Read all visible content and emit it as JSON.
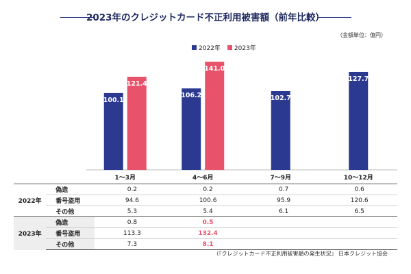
{
  "title": "2023年のクレジットカード不正利用被害額（前年比較）",
  "unit_note": "（金額単位：億円）",
  "source": "（『クレジットカード不正利用被害額の発生状況』 日本クレジット協会",
  "colors": {
    "s2022": "#2b3990",
    "s2023": "#e8536b",
    "title_line": "#2b3990"
  },
  "chart_data": {
    "type": "bar",
    "categories": [
      "1〜3月",
      "4〜6月",
      "7〜9月",
      "10〜12月"
    ],
    "series": [
      {
        "name": "2022年",
        "values": [
          100.1,
          106.2,
          102.7,
          127.7
        ]
      },
      {
        "name": "2023年",
        "values": [
          121.4,
          141.0,
          null,
          null
        ]
      }
    ],
    "value_labels": [
      [
        "100.1",
        "106.2",
        "102.7",
        "127.7"
      ],
      [
        "121.4",
        "141.0",
        "",
        ""
      ]
    ],
    "ylim": [
      0,
      150
    ],
    "legend": "top-center",
    "grid": false
  },
  "table": {
    "groups": [
      {
        "year": "2022年",
        "rows": [
          {
            "label": "偽造",
            "values": [
              "0.2",
              "0.2",
              "0.7",
              "0.6"
            ]
          },
          {
            "label": "番号盗用",
            "values": [
              "94.6",
              "100.6",
              "95.9",
              "120.6"
            ]
          },
          {
            "label": "その他",
            "values": [
              "5.3",
              "5.4",
              "6.1",
              "6.5"
            ]
          }
        ]
      },
      {
        "year": "2023年",
        "rows": [
          {
            "label": "偽造",
            "values": [
              "0.8",
              "0.5",
              "",
              ""
            ]
          },
          {
            "label": "番号盗用",
            "values": [
              "113.3",
              "132.4",
              "",
              ""
            ]
          },
          {
            "label": "その他",
            "values": [
              "7.3",
              "8.1",
              "",
              ""
            ]
          }
        ]
      }
    ]
  }
}
